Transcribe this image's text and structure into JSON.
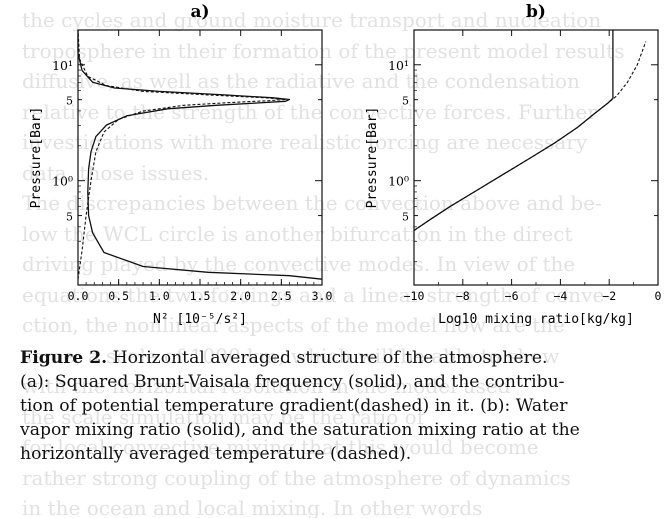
{
  "ghost_text": [
    "the cycles and ground moisture transport and nucleation",
    "troposphere in their formation of the present model results",
    "diffusive, as well as the radiative and the condensation",
    "relative to the strength of the convective forces. Further",
    "investigations with more realistic forcing are necessary",
    "data, those issues.",
    "The discrepancies between the convection above and be-",
    "low the WCL circle is another bifurcation in the direct",
    "driving played by the convective modes. In view of the",
    "equations the two forcings and a linear strength of conve-",
    "ction, the nonlinear aspects of the model flow are the",
    "same, a scale of 1000 km, which will be able to show",
    "with the horizontal resolution in the model used",
    "the scale simulation may be the ratio of ",
    "for local convective mixing that this would become",
    "rather strong coupling of the atmosphere of dynamics",
    "in the ocean and local mixing. In other words"
  ],
  "chart_data": [
    {
      "type": "line",
      "panel_label": "a)",
      "title": "",
      "xlabel": "N² [10⁻⁵/s²]",
      "ylabel": "Pressure[Bar]",
      "xlim": [
        0.0,
        3.0
      ],
      "ylim_log10": [
        1.3,
        -0.9
      ],
      "x_tick_labels": [
        "0.0",
        "0.5",
        "1.0",
        "1.5",
        "2.0",
        "2.5",
        "3.0"
      ],
      "x_ticks": [
        0.0,
        0.5,
        1.0,
        1.5,
        2.0,
        2.5,
        3.0
      ],
      "y_tick_labels": [
        {
          "label": "5",
          "logp": -0.30103
        },
        {
          "label": "10⁰",
          "logp": 0
        },
        {
          "label": "5",
          "logp": 0.69897
        },
        {
          "label": "10¹",
          "logp": 1
        }
      ],
      "series": [
        {
          "style": "solid",
          "x": [
            3.0,
            2.6,
            1.6,
            0.8,
            0.32,
            0.18,
            0.13,
            0.12,
            0.13,
            0.16,
            0.22,
            0.35,
            0.6,
            1.1,
            1.7,
            2.2,
            2.55,
            2.6,
            2.4,
            1.8,
            1.0,
            0.45,
            0.18,
            0.05,
            0.0,
            0.0
          ],
          "logp": [
            -0.85,
            -0.82,
            -0.79,
            -0.74,
            -0.62,
            -0.45,
            -0.3,
            -0.1,
            0.1,
            0.25,
            0.38,
            0.48,
            0.56,
            0.62,
            0.65,
            0.67,
            0.685,
            0.7,
            0.715,
            0.74,
            0.77,
            0.8,
            0.85,
            0.95,
            1.1,
            1.3
          ]
        },
        {
          "style": "dashed",
          "x": [
            0.0,
            0.05,
            0.1,
            0.16,
            0.22,
            0.32,
            0.5,
            0.8,
            1.3,
            1.9,
            2.35,
            2.55,
            2.3,
            1.6,
            0.8,
            0.35,
            0.12,
            0.02,
            0.0
          ],
          "logp": [
            -0.85,
            -0.6,
            -0.3,
            0.0,
            0.25,
            0.42,
            0.53,
            0.6,
            0.65,
            0.675,
            0.69,
            0.7,
            0.715,
            0.74,
            0.77,
            0.82,
            0.9,
            1.05,
            1.3
          ]
        }
      ]
    },
    {
      "type": "line",
      "panel_label": "b)",
      "title": "",
      "xlabel": "Log10 mixing ratio[kg/kg]",
      "ylabel": "Pressure[Bar]",
      "xlim": [
        -10,
        0
      ],
      "ylim_log10": [
        1.3,
        -0.9
      ],
      "x_tick_labels": [
        "−10",
        "−8",
        "−6",
        "−4",
        "−2",
        "0"
      ],
      "x_ticks": [
        -10,
        -8,
        -6,
        -4,
        -2,
        0
      ],
      "y_tick_labels": [
        {
          "label": "5",
          "logp": -0.30103
        },
        {
          "label": "10⁰",
          "logp": 0
        },
        {
          "label": "5",
          "logp": 0.69897
        },
        {
          "label": "10¹",
          "logp": 1
        }
      ],
      "series": [
        {
          "style": "solid",
          "x": [
            -10,
            -9.3,
            -8.5,
            -7.4,
            -6.3,
            -5.2,
            -4.2,
            -3.3,
            -2.6,
            -2.05,
            -1.85,
            -1.85,
            -1.85
          ],
          "logp": [
            -0.43,
            -0.33,
            -0.22,
            -0.08,
            0.06,
            0.2,
            0.33,
            0.46,
            0.58,
            0.67,
            0.71,
            1.0,
            1.3
          ]
        },
        {
          "style": "dashed",
          "x": [
            -10,
            -9.3,
            -8.5,
            -7.4,
            -6.3,
            -5.2,
            -4.2,
            -3.3,
            -2.6,
            -2.05,
            -1.7,
            -1.25,
            -0.85,
            -0.5
          ],
          "logp": [
            -0.43,
            -0.33,
            -0.22,
            -0.08,
            0.06,
            0.2,
            0.33,
            0.46,
            0.58,
            0.67,
            0.73,
            0.85,
            1.0,
            1.2
          ]
        }
      ]
    }
  ],
  "caption": {
    "fig_label": "Figure 2.",
    "lines": [
      " Horizontal averaged structure of the atmosphere.",
      "(a): Squared Brunt-Vaisala frequency (solid), and the contribu-",
      "tion of potential temperature gradient(dashed) in it. (b): Water",
      "vapor mixing ratio (solid), and the saturation mixing ratio at the",
      "horizontally averaged temperature (dashed)."
    ]
  }
}
